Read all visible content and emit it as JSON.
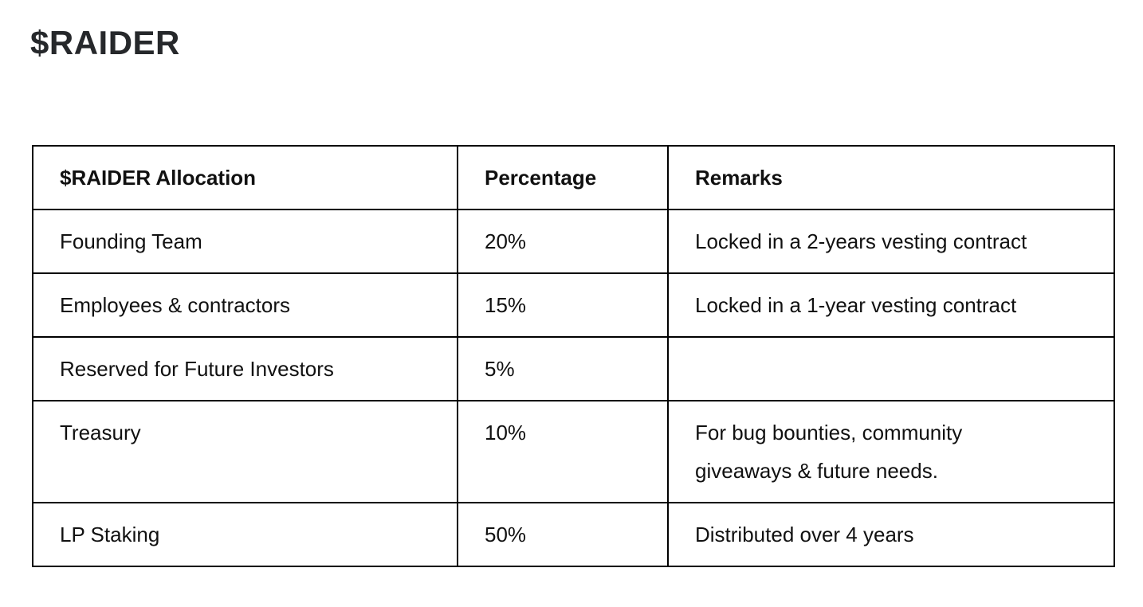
{
  "page": {
    "title": "$RAIDER"
  },
  "table": {
    "headers": {
      "allocation": "$RAIDER Allocation",
      "percentage": "Percentage",
      "remarks": "Remarks"
    },
    "rows": [
      {
        "allocation": "Founding Team",
        "percentage": "20%",
        "remarks": "Locked in a 2-years vesting contract"
      },
      {
        "allocation": "Employees & contractors",
        "percentage": "15%",
        "remarks": "Locked in a 1-year vesting contract"
      },
      {
        "allocation": "Reserved for Future Investors",
        "percentage": "5%",
        "remarks": ""
      },
      {
        "allocation": "Treasury",
        "percentage": "10%",
        "remarks": "For bug bounties, community\ngiveaways & future needs."
      },
      {
        "allocation": "LP Staking",
        "percentage": "50%",
        "remarks": "Distributed over 4 years"
      }
    ]
  },
  "colors": {
    "text": "#111111",
    "title_text": "#26282b",
    "border": "#000000",
    "background": "#ffffff"
  }
}
